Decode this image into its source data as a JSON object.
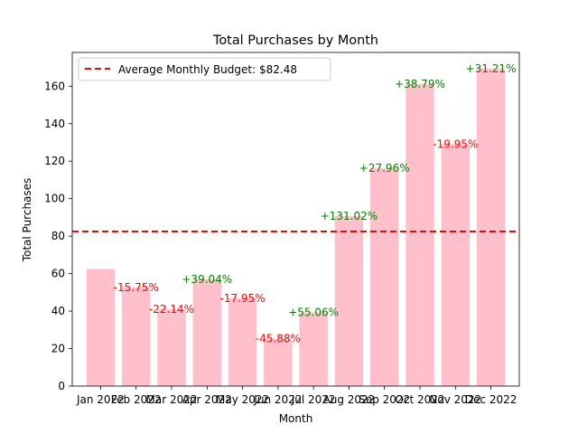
{
  "chart_data": {
    "type": "bar",
    "title": "Total Purchases by Month",
    "xlabel": "Month",
    "ylabel": "Total Purchases",
    "categories": [
      "Jan 2022",
      "Feb 2022",
      "Mar 2022",
      "Apr 2022",
      "May 2022",
      "Jun 2022",
      "Jul 2022",
      "Aug 2022",
      "Sep 2022",
      "Oct 2022",
      "Nov 2022",
      "Dec 2022"
    ],
    "values": [
      62.5,
      52.7,
      41.0,
      57.0,
      46.8,
      25.3,
      39.3,
      90.8,
      116.2,
      161.2,
      129.1,
      169.4
    ],
    "bar_color": "#ffc0cb",
    "ylim": [
      0,
      178
    ],
    "yticks": [
      0,
      20,
      40,
      60,
      80,
      100,
      120,
      140,
      160
    ],
    "change_labels": [
      "",
      "-15.75%",
      "-22.14%",
      "+39.04%",
      "-17.95%",
      "-45.88%",
      "+55.06%",
      "+131.02%",
      "+27.96%",
      "+38.79%",
      "-19.95%",
      "+31.21%"
    ],
    "positive_color": "#008000",
    "negative_color": "#ff0000",
    "reference_line": {
      "value": 82.48,
      "label": "Average Monthly Budget: $82.48",
      "color": "#ff0000",
      "style": "dashed"
    },
    "legend_position": "upper-left",
    "grid": false
  }
}
